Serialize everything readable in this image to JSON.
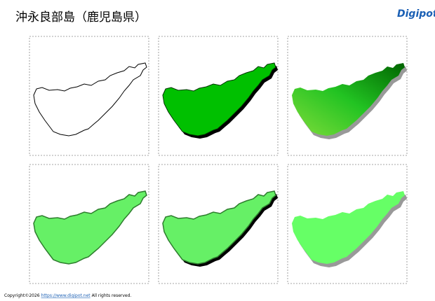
{
  "header": {
    "title": "沖永良部島（鹿児島県）",
    "logo": "Digipot"
  },
  "footer": {
    "copyright": "Copyright©2026",
    "url": "https://www.digipot.net",
    "rights": "All rights reserved."
  }
}
